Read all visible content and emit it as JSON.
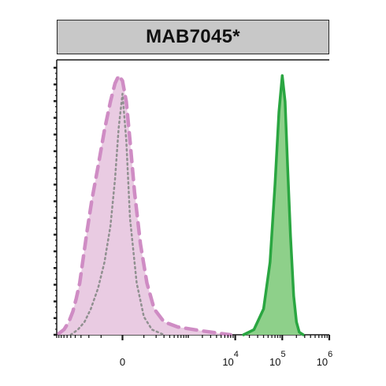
{
  "header": {
    "title": "MAB7045*"
  },
  "chart_data": {
    "type": "area",
    "title": "MAB7045*",
    "xlabel": "",
    "ylabel": "",
    "x_scale": "biexponential",
    "x_ticks": [
      {
        "base": "0",
        "exp": ""
      },
      {
        "base": "10",
        "exp": "4"
      },
      {
        "base": "10",
        "exp": "5"
      },
      {
        "base": "10",
        "exp": "6"
      }
    ],
    "grid": false,
    "legend": "none",
    "series": [
      {
        "style": "filled, thick dashed outline",
        "fill": "#e9cbe2",
        "stroke": "#cf8cc4",
        "x": [
          -900,
          -700,
          -550,
          -450,
          -380,
          -320,
          -270,
          -220,
          -170,
          -120,
          -80,
          -50,
          -30,
          -15,
          0,
          15,
          30,
          50,
          80,
          120,
          180,
          300,
          600,
          2000,
          5000,
          8000
        ],
        "y": [
          0.005,
          0.02,
          0.05,
          0.09,
          0.14,
          0.2,
          0.29,
          0.4,
          0.52,
          0.65,
          0.79,
          0.9,
          0.97,
          1.0,
          0.98,
          0.9,
          0.75,
          0.55,
          0.35,
          0.2,
          0.1,
          0.05,
          0.03,
          0.015,
          0.005,
          0.0
        ]
      },
      {
        "style": "dotted line, no fill",
        "stroke": "#909090",
        "x": [
          -500,
          -350,
          -250,
          -180,
          -120,
          -80,
          -50,
          -30,
          -15,
          0,
          15,
          30,
          60,
          100,
          160,
          300
        ],
        "y": [
          0.0,
          0.02,
          0.05,
          0.1,
          0.18,
          0.28,
          0.42,
          0.6,
          0.8,
          0.93,
          0.75,
          0.45,
          0.2,
          0.07,
          0.02,
          0.0
        ]
      },
      {
        "style": "filled, solid outline",
        "fill": "#8ed08a",
        "stroke": "#2aa641",
        "x": [
          15000,
          25000,
          40000,
          55000,
          70000,
          85000,
          100000,
          115000,
          130000,
          150000,
          175000,
          200000,
          230000,
          280000
        ],
        "y": [
          0.0,
          0.02,
          0.1,
          0.28,
          0.58,
          0.86,
          1.0,
          0.9,
          0.65,
          0.38,
          0.15,
          0.05,
          0.01,
          0.0
        ]
      }
    ]
  }
}
